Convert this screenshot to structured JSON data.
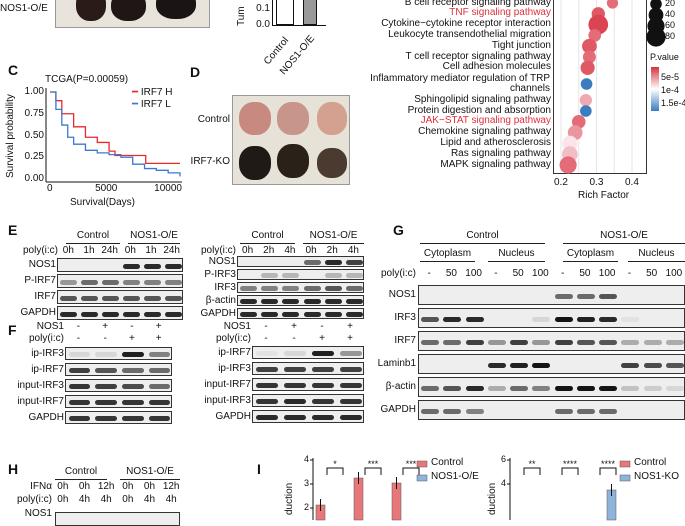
{
  "panelA": {
    "row_label": "NOS1-O/E"
  },
  "panelB": {
    "ylabel": "Tum",
    "ticks": [
      "0.1",
      "0.0"
    ],
    "categories": [
      "Control",
      "NOS1-O/E"
    ]
  },
  "panelC": {
    "letter": "C",
    "title": "TCGA(P=0.00059)",
    "ylabel": "Survival probability",
    "xlabel": "Survival(Days)",
    "yticks": [
      "1.00",
      "0.75",
      "0.50",
      "0.25",
      "0.00"
    ],
    "xticks": [
      "0",
      "5000",
      "10000"
    ],
    "legend": [
      {
        "label": "IRF7 H",
        "color": "#e8292e"
      },
      {
        "label": "IRF7 L",
        "color": "#3c78d0"
      }
    ]
  },
  "panelD": {
    "letter": "D",
    "rows": [
      "Control",
      "IRF7-KO"
    ]
  },
  "panelE": {
    "letter": "E",
    "left": {
      "groups": [
        "Control",
        "NOS1-O/E"
      ],
      "treat_label": "poly(i:c)",
      "lanes": [
        "0h",
        "1h",
        "24h",
        "0h",
        "1h",
        "24h"
      ],
      "rows": [
        {
          "label": "NOS1",
          "bands": [
            0,
            0,
            0,
            0.9,
            0.9,
            0.9
          ]
        },
        {
          "label": "P-IRF7",
          "bands": [
            0.4,
            0.6,
            0.6,
            0.5,
            0.5,
            0.5
          ]
        },
        {
          "label": "IRF7",
          "bands": [
            0.7,
            0.7,
            0.7,
            0.7,
            0.7,
            0.7
          ]
        },
        {
          "label": "GAPDH",
          "bands": [
            0.9,
            0.9,
            0.9,
            0.9,
            0.9,
            0.9
          ]
        }
      ]
    },
    "right": {
      "groups": [
        "Control",
        "NOS1-O/E"
      ],
      "treat_label": "poly(i:c)",
      "lanes": [
        "0h",
        "2h",
        "4h",
        "0h",
        "2h",
        "4h"
      ],
      "rows": [
        {
          "label": "NOS1",
          "bands": [
            0,
            0,
            0,
            0.6,
            0.9,
            0.8
          ]
        },
        {
          "label": "P-IRF3",
          "bands": [
            0,
            0.25,
            0.25,
            0,
            0.25,
            0.25
          ]
        },
        {
          "label": "IRF3",
          "bands": [
            0.5,
            0.5,
            0.5,
            0.6,
            0.7,
            0.6
          ]
        },
        {
          "label": "β-actin",
          "bands": [
            0.9,
            0.9,
            0.9,
            0.9,
            0.9,
            0.9
          ]
        },
        {
          "label": "GAPDH",
          "bands": [
            0.9,
            0.9,
            0.9,
            0.9,
            0.9,
            0.9
          ]
        }
      ]
    }
  },
  "panelF": {
    "letter": "F",
    "left": {
      "conds": [
        {
          "label": "NOS1",
          "values": [
            "-",
            "+",
            "-",
            "+"
          ]
        },
        {
          "label": "poly(i:c)",
          "values": [
            "-",
            "-",
            "+",
            "+"
          ]
        }
      ],
      "rows": [
        {
          "label": "ip-IRF3",
          "bands": [
            0.1,
            0.1,
            0.95,
            0.5
          ]
        },
        {
          "label": "ip-IRF7",
          "bands": [
            0.8,
            0.7,
            0.6,
            0.6
          ]
        },
        {
          "label": "input-IRF3",
          "bands": [
            0.85,
            0.8,
            0.75,
            0.6
          ]
        },
        {
          "label": "input-IRF7",
          "bands": [
            0.85,
            0.85,
            0.85,
            0.85
          ]
        },
        {
          "label": "GAPDH",
          "bands": [
            0.85,
            0.85,
            0.85,
            0.85
          ]
        }
      ]
    },
    "right": {
      "conds": [
        {
          "label": "NOS1",
          "values": [
            "-",
            "+",
            "-",
            "+"
          ]
        },
        {
          "label": "poly(i:c)",
          "values": [
            "-",
            "-",
            "+",
            "+"
          ]
        }
      ],
      "rows": [
        {
          "label": "ip-IRF7",
          "bands": [
            0.05,
            0.1,
            0.95,
            0.4
          ]
        },
        {
          "label": "ip-IRF3",
          "bands": [
            0.8,
            0.8,
            0.8,
            0.8
          ]
        },
        {
          "label": "input-IRF7",
          "bands": [
            0.85,
            0.85,
            0.85,
            0.85
          ]
        },
        {
          "label": "input-IRF3",
          "bands": [
            0.85,
            0.9,
            0.85,
            0.85
          ]
        },
        {
          "label": "GAPDH",
          "bands": [
            0.9,
            0.9,
            0.9,
            0.9
          ]
        }
      ]
    }
  },
  "panelG": {
    "letter": "G",
    "groups": [
      "Control",
      "NOS1-O/E"
    ],
    "fractions": [
      "Cytoplasm",
      "Nucleus",
      "Cytoplasm",
      "Nucleus"
    ],
    "treat_label": "poly(i:c)",
    "lanes": [
      "-",
      "50",
      "100",
      "-",
      "50",
      "100",
      "-",
      "50",
      "100",
      "-",
      "50",
      "100"
    ],
    "rows": [
      {
        "label": "NOS1",
        "bands": [
          0,
          0,
          0,
          0,
          0,
          0,
          0.6,
          0.6,
          0.7,
          0,
          0,
          0
        ]
      },
      {
        "label": "IRF3",
        "bands": [
          0.7,
          0.9,
          0.9,
          0,
          0,
          0.1,
          1,
          0.95,
          0.9,
          0.05,
          0,
          0
        ]
      },
      {
        "label": "IRF7",
        "bands": [
          0.6,
          0.6,
          0.8,
          0.4,
          0.8,
          0.4,
          0.8,
          0.7,
          0.7,
          0.3,
          0.3,
          0.3
        ]
      },
      {
        "label": "Laminb1",
        "bands": [
          0,
          0,
          0,
          0.9,
          0.95,
          1,
          0,
          0,
          0,
          0.8,
          0.75,
          0.7
        ]
      },
      {
        "label": "β-actin",
        "bands": [
          0.6,
          0.7,
          0.9,
          0.3,
          0.6,
          0.5,
          1,
          1,
          1,
          0.2,
          0.15,
          0.1
        ]
      },
      {
        "label": "GAPDH",
        "bands": [
          0.6,
          0.6,
          0.5,
          0,
          0,
          0,
          0.6,
          0.6,
          0.6,
          0,
          0,
          0
        ]
      }
    ]
  },
  "panelH": {
    "letter": "H",
    "groups": [
      "Control",
      "NOS1-O/E"
    ],
    "rows": [
      {
        "label": "IFNα",
        "values": [
          "0h",
          "0h",
          "12h",
          "0h",
          "0h",
          "12h"
        ]
      },
      {
        "label": "poly(i:c)",
        "values": [
          "0h",
          "4h",
          "4h",
          "0h",
          "4h",
          "4h"
        ]
      }
    ],
    "first_blot": "NOS1"
  },
  "panelI": {
    "letter": "I",
    "ylabel": "duction",
    "left": {
      "yticks": [
        "4",
        "3",
        "2"
      ],
      "sig": [
        "*",
        "***",
        "***"
      ],
      "legend": [
        {
          "label": "Control",
          "color": "#e8777a"
        },
        {
          "label": "NOS1-O/E",
          "color": "#8fb4dc"
        }
      ]
    },
    "right": {
      "yticks": [
        "6",
        "4"
      ],
      "sig": [
        "**",
        "****",
        "****"
      ],
      "legend": [
        {
          "label": "Control",
          "color": "#e8777a"
        },
        {
          "label": "NOS1-KO",
          "color": "#8fb4dc"
        }
      ]
    }
  },
  "chart_data": [
    {
      "type": "scatter",
      "name": "KEGG enrichment",
      "xlabel": "Rich Factor",
      "xticks": [
        "0.2",
        "0.3",
        "0.4"
      ],
      "xlim": [
        0.18,
        0.44
      ],
      "size_legend_title": "",
      "size_legend": [
        "20",
        "40",
        "60",
        "80"
      ],
      "color_legend_title": "P.value",
      "color_legend": [
        "5e-5",
        "1e-4",
        "1.5e-4"
      ],
      "points": [
        {
          "term": "B cell receptor signaling pathway",
          "x": 0.345,
          "count": 18,
          "p": 3e-05,
          "highlight": false
        },
        {
          "term": "TNF signaling pathway",
          "x": 0.305,
          "count": 30,
          "p": 2e-05,
          "highlight": true
        },
        {
          "term": "Cytokine−cytokine receptor interaction",
          "x": 0.305,
          "count": 85,
          "p": 1e-05,
          "highlight": false
        },
        {
          "term": "Leukocyte transendothelial migration",
          "x": 0.295,
          "count": 26,
          "p": 3e-05,
          "highlight": false
        },
        {
          "term": "Tight junction",
          "x": 0.28,
          "count": 40,
          "p": 2e-05,
          "highlight": false
        },
        {
          "term": "T cell receptor signaling pathway",
          "x": 0.28,
          "count": 28,
          "p": 3e-05,
          "highlight": false
        },
        {
          "term": "Cell adhesion molecules",
          "x": 0.275,
          "count": 36,
          "p": 2e-05,
          "highlight": false
        },
        {
          "term": "Inflammatory mediator regulation of TRP channels",
          "x": 0.272,
          "count": 20,
          "p": 0.00015,
          "highlight": false
        },
        {
          "term": "Sphingolipid signaling pathway",
          "x": 0.27,
          "count": 24,
          "p": 6e-05,
          "highlight": false
        },
        {
          "term": "Protein digestion and absorption",
          "x": 0.27,
          "count": 20,
          "p": 0.00015,
          "highlight": false
        },
        {
          "term": "JAK−STAT signaling pathway",
          "x": 0.25,
          "count": 32,
          "p": 3e-05,
          "highlight": true
        },
        {
          "term": "Chemokine signaling pathway",
          "x": 0.24,
          "count": 40,
          "p": 5e-05,
          "highlight": false
        },
        {
          "term": "Lipid and atherosclerosis",
          "x": 0.225,
          "count": 44,
          "p": 9e-05,
          "highlight": false
        },
        {
          "term": "Ras signaling pathway",
          "x": 0.225,
          "count": 48,
          "p": 7e-05,
          "highlight": false
        },
        {
          "term": "MAPK signaling pathway",
          "x": 0.22,
          "count": 60,
          "p": 3e-05,
          "highlight": false
        }
      ]
    },
    {
      "type": "line",
      "name": "Kaplan-Meier",
      "xlim": [
        0,
        11000
      ],
      "ylim": [
        0,
        1
      ],
      "series": [
        {
          "name": "IRF7 H",
          "x": [
            0,
            500,
            1000,
            2000,
            3000,
            4000,
            5000,
            5500,
            8000,
            8100,
            11000
          ],
          "y": [
            1,
            0.9,
            0.75,
            0.6,
            0.48,
            0.42,
            0.32,
            0.27,
            0.27,
            0.18,
            0.18
          ]
        },
        {
          "name": "IRF7 L",
          "x": [
            0,
            500,
            1000,
            1500,
            2000,
            3000,
            4000,
            5000,
            6000,
            7000,
            8000,
            9000,
            10000,
            11000
          ],
          "y": [
            1,
            0.8,
            0.62,
            0.48,
            0.4,
            0.33,
            0.3,
            0.28,
            0.25,
            0.17,
            0.12,
            0.1,
            0.07,
            0.03
          ]
        }
      ]
    },
    {
      "type": "bar",
      "name": "Tumor",
      "categories": [
        "Control",
        "NOS1-O/E"
      ],
      "values": [
        0.2,
        0.2
      ],
      "ylim": [
        0,
        0.2
      ]
    },
    {
      "type": "bar",
      "name": "I-left",
      "categories": [
        "1",
        "2",
        "3"
      ],
      "series": [
        {
          "name": "Control",
          "values": [
            2.15,
            3.3,
            3.1
          ]
        }
      ],
      "ylim": [
        1.8,
        4.1
      ]
    },
    {
      "type": "bar",
      "name": "I-right",
      "categories": [
        "1",
        "2",
        "3"
      ],
      "series": [
        {
          "name": "NOS1-KO",
          "values": [
            null,
            null,
            4.9
          ]
        }
      ],
      "ylim": [
        3,
        6.1
      ]
    }
  ]
}
